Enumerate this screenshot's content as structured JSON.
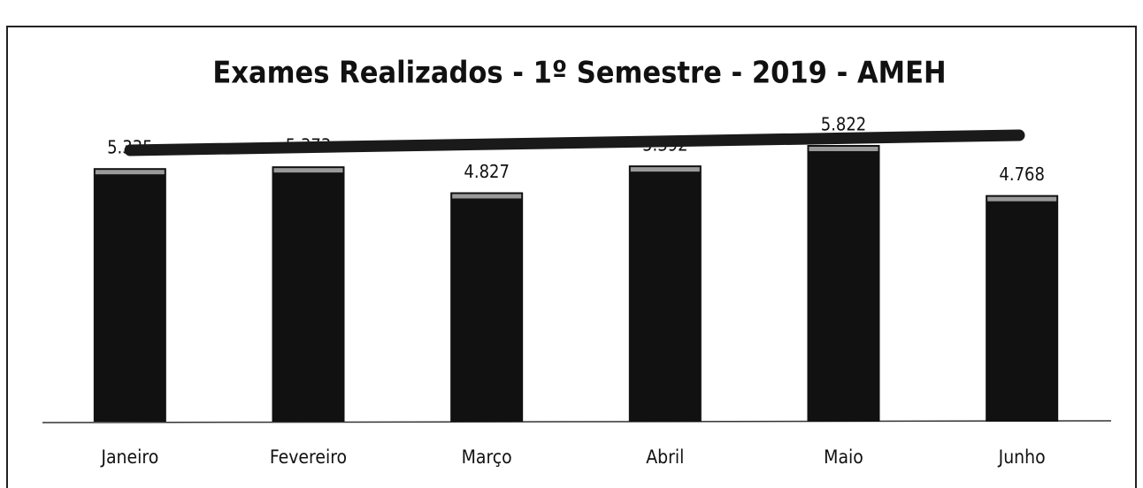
{
  "chart_data": {
    "type": "bar",
    "title": "Exames Realizados - 1º Semestre - 2019 - AMEH",
    "categories": [
      "Janeiro",
      "Fevereiro",
      "Março",
      "Abril",
      "Maio",
      "Junho"
    ],
    "values": [
      5335,
      5373,
      4827,
      5392,
      5822,
      4768
    ],
    "value_labels": [
      "5.335",
      "5.373",
      "4.827",
      "5.392",
      "5.822",
      "4.768"
    ],
    "color": "#111111"
  }
}
